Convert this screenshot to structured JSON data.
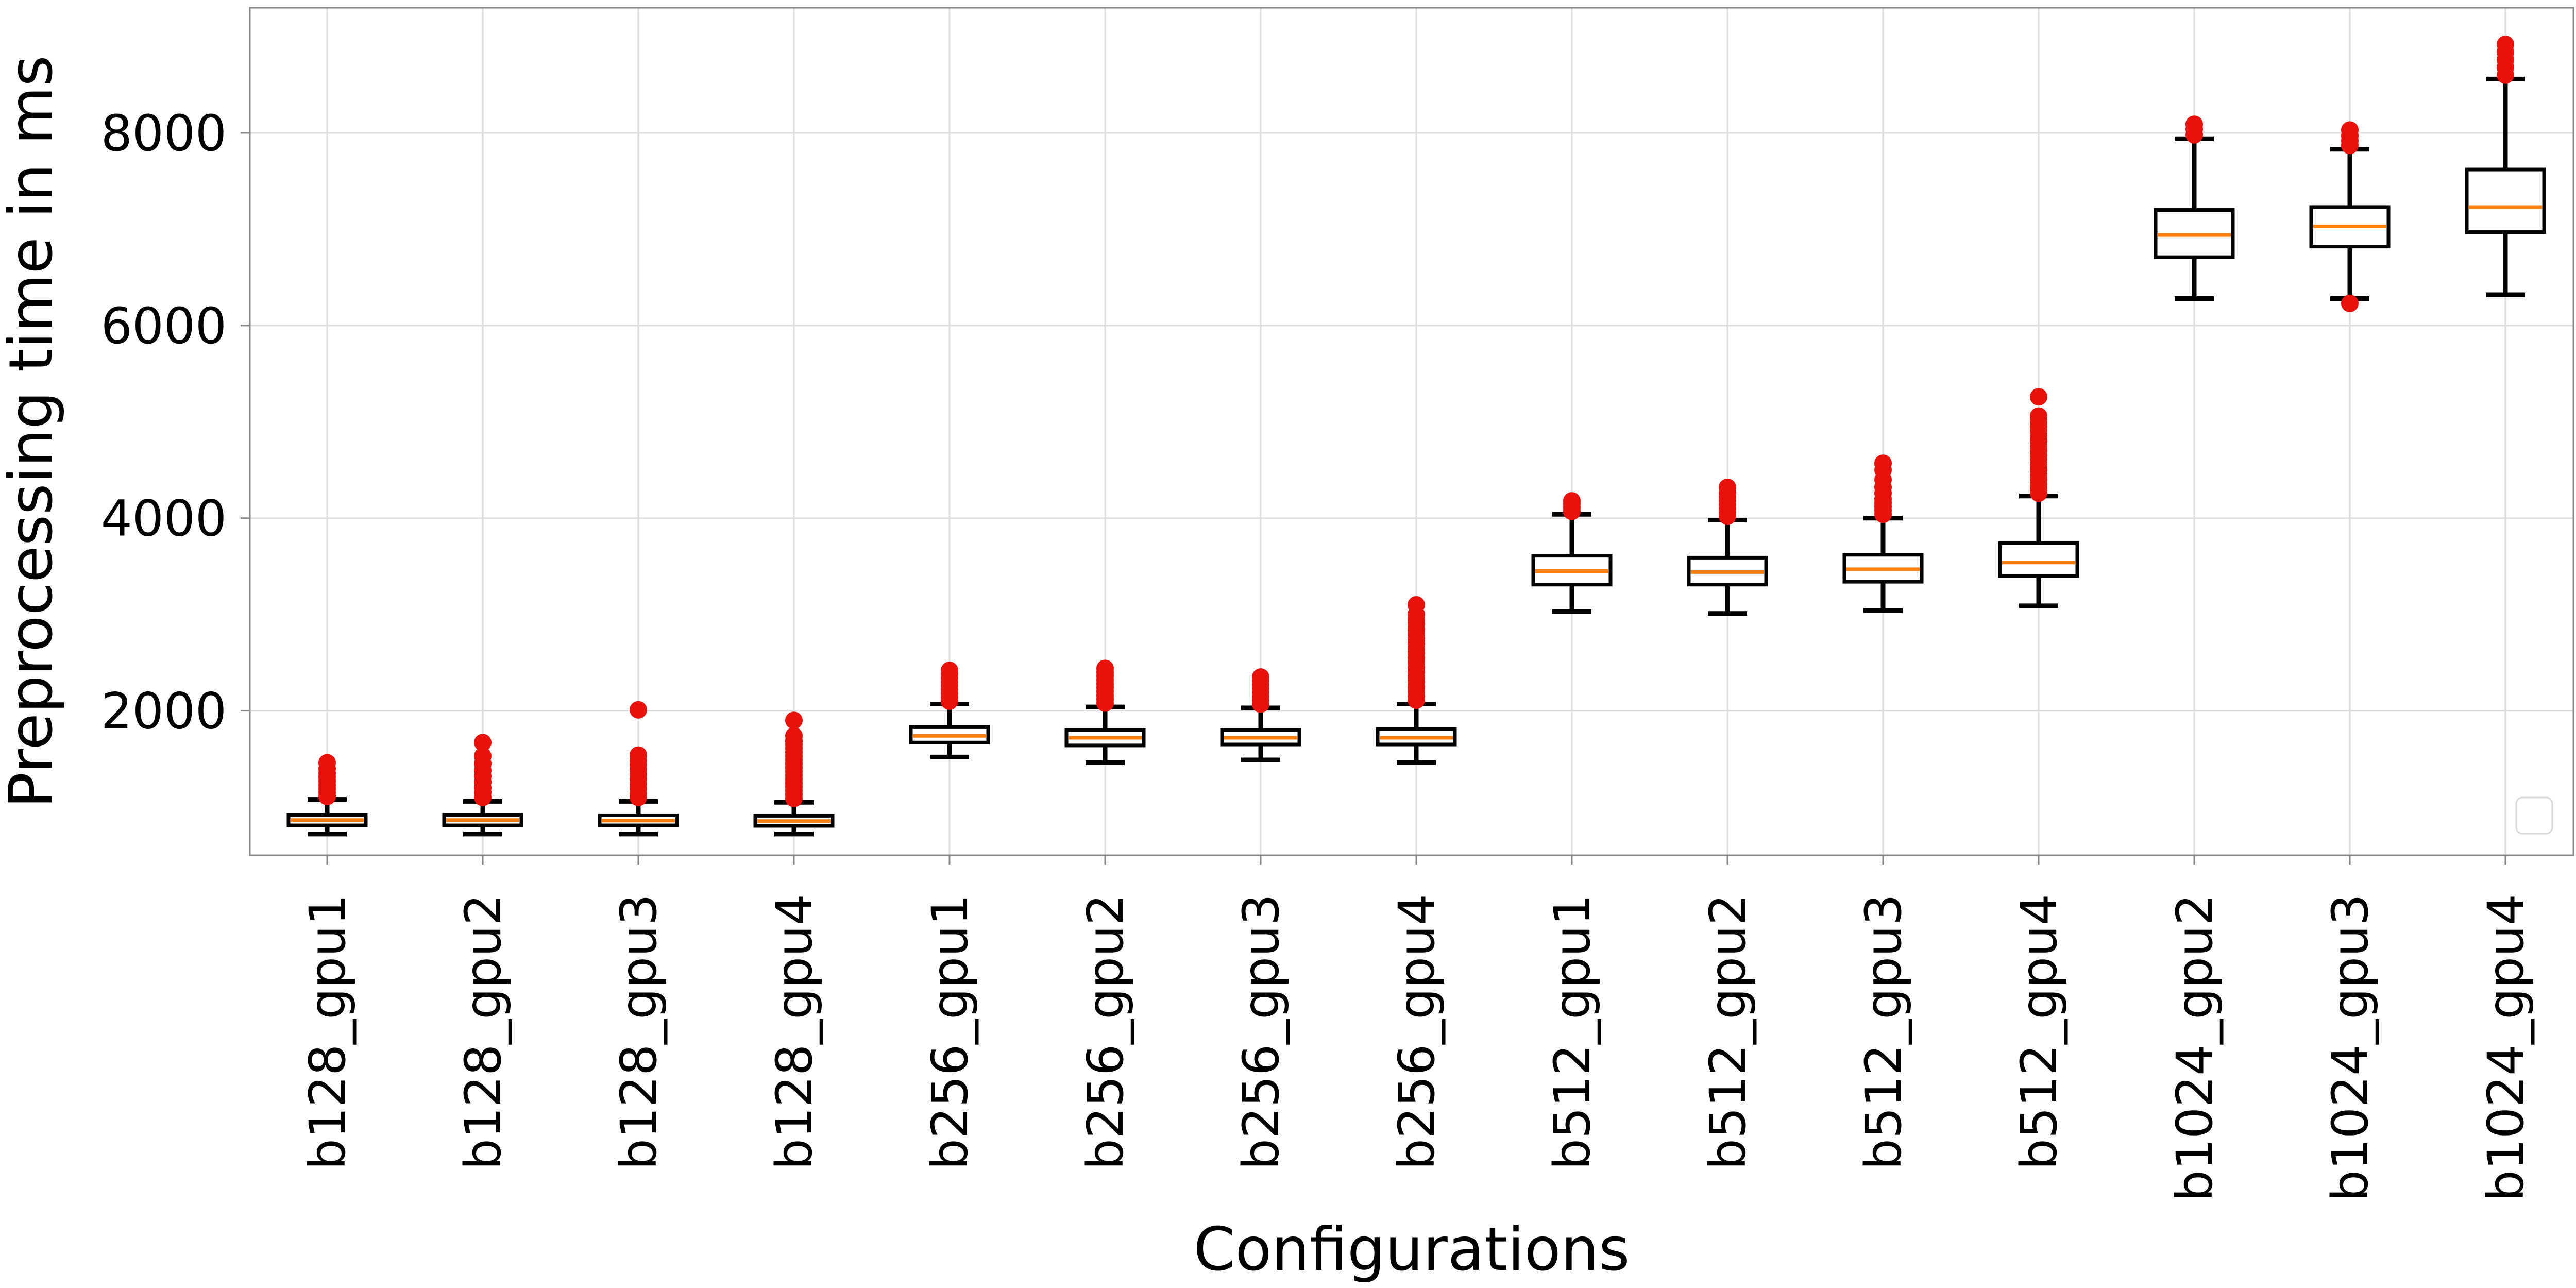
{
  "chart_data": {
    "type": "box",
    "title": "",
    "xlabel": "Configurations",
    "ylabel": "Preprocessing time in ms",
    "ylim": [
      500,
      9300
    ],
    "yticks": [
      2000,
      4000,
      6000,
      8000
    ],
    "grid": true,
    "legend": {
      "placement": "lower right",
      "entries": []
    },
    "colors": {
      "box_edge": "#000000",
      "median": "#ff7f0e",
      "outlier": "#e8110c",
      "grid": "#dddddd",
      "axes": "#888888"
    },
    "categories": [
      "b128_gpu1",
      "b128_gpu2",
      "b128_gpu3",
      "b128_gpu4",
      "b256_gpu1",
      "b256_gpu2",
      "b256_gpu3",
      "b256_gpu4",
      "b512_gpu1",
      "b512_gpu2",
      "b512_gpu3",
      "b512_gpu4",
      "b1024_gpu2",
      "b1024_gpu3",
      "b1024_gpu4"
    ],
    "boxes": [
      {
        "category": "b128_gpu1",
        "whisker_low": 720,
        "q1": 810,
        "median": 865,
        "q3": 920,
        "whisker_high": 1080,
        "outliers": [
          1110,
          1150,
          1190,
          1230,
          1270,
          1310,
          1350,
          1400,
          1460
        ]
      },
      {
        "category": "b128_gpu2",
        "whisker_low": 720,
        "q1": 810,
        "median": 865,
        "q3": 920,
        "whisker_high": 1060,
        "outliers": [
          1100,
          1150,
          1200,
          1260,
          1320,
          1380,
          1450,
          1530,
          1670
        ]
      },
      {
        "category": "b128_gpu3",
        "whisker_low": 720,
        "q1": 810,
        "median": 860,
        "q3": 915,
        "whisker_high": 1060,
        "outliers": [
          1100,
          1140,
          1190,
          1240,
          1290,
          1340,
          1390,
          1440,
          1480,
          1540,
          2010
        ]
      },
      {
        "category": "b128_gpu4",
        "whisker_low": 720,
        "q1": 805,
        "median": 855,
        "q3": 910,
        "whisker_high": 1050,
        "outliers": [
          1090,
          1130,
          1170,
          1210,
          1250,
          1290,
          1330,
          1370,
          1410,
          1450,
          1490,
          1530,
          1570,
          1610,
          1650,
          1690,
          1740,
          1900
        ]
      },
      {
        "category": "b256_gpu1",
        "whisker_low": 1520,
        "q1": 1670,
        "median": 1740,
        "q3": 1830,
        "whisker_high": 2070,
        "outliers": [
          2100,
          2140,
          2180,
          2220,
          2260,
          2300,
          2340,
          2380,
          2420
        ]
      },
      {
        "category": "b256_gpu2",
        "whisker_low": 1460,
        "q1": 1640,
        "median": 1720,
        "q3": 1800,
        "whisker_high": 2040,
        "outliers": [
          2080,
          2120,
          2160,
          2200,
          2240,
          2280,
          2320,
          2360,
          2400,
          2440
        ]
      },
      {
        "category": "b256_gpu3",
        "whisker_low": 1490,
        "q1": 1650,
        "median": 1720,
        "q3": 1800,
        "whisker_high": 2030,
        "outliers": [
          2070,
          2110,
          2150,
          2190,
          2230,
          2270,
          2310,
          2350
        ]
      },
      {
        "category": "b256_gpu4",
        "whisker_low": 1460,
        "q1": 1650,
        "median": 1720,
        "q3": 1810,
        "whisker_high": 2070,
        "outliers": [
          2110,
          2150,
          2200,
          2250,
          2300,
          2350,
          2400,
          2450,
          2500,
          2550,
          2600,
          2650,
          2700,
          2750,
          2800,
          2850,
          2900,
          2950,
          3000,
          3100
        ]
      },
      {
        "category": "b512_gpu1",
        "whisker_low": 3030,
        "q1": 3310,
        "median": 3450,
        "q3": 3610,
        "whisker_high": 4040,
        "outliers": [
          4070,
          4110,
          4150,
          4180
        ]
      },
      {
        "category": "b512_gpu2",
        "whisker_low": 3010,
        "q1": 3310,
        "median": 3440,
        "q3": 3590,
        "whisker_high": 3980,
        "outliers": [
          4020,
          4060,
          4100,
          4140,
          4180,
          4220,
          4260,
          4320
        ]
      },
      {
        "category": "b512_gpu3",
        "whisker_low": 3040,
        "q1": 3340,
        "median": 3470,
        "q3": 3620,
        "whisker_high": 4000,
        "outliers": [
          4040,
          4080,
          4120,
          4160,
          4200,
          4260,
          4320,
          4400,
          4500,
          4570
        ]
      },
      {
        "category": "b512_gpu4",
        "whisker_low": 3090,
        "q1": 3400,
        "median": 3540,
        "q3": 3740,
        "whisker_high": 4230,
        "outliers": [
          4260,
          4300,
          4350,
          4400,
          4450,
          4500,
          4550,
          4600,
          4650,
          4700,
          4750,
          4800,
          4850,
          4900,
          4950,
          5000,
          5060,
          5260
        ]
      },
      {
        "category": "b1024_gpu2",
        "whisker_low": 6280,
        "q1": 6710,
        "median": 6940,
        "q3": 7200,
        "whisker_high": 7940,
        "outliers": [
          7980,
          8040,
          8090
        ]
      },
      {
        "category": "b1024_gpu3",
        "whisker_low": 6280,
        "q1": 6820,
        "median": 7030,
        "q3": 7230,
        "whisker_high": 7830,
        "outliers": [
          6230,
          7870,
          7920,
          7970,
          8030
        ]
      },
      {
        "category": "b1024_gpu4",
        "whisker_low": 6320,
        "q1": 6970,
        "median": 7230,
        "q3": 7620,
        "whisker_high": 8560,
        "outliers": [
          8600,
          8680,
          8760,
          8840,
          8920
        ]
      }
    ]
  }
}
